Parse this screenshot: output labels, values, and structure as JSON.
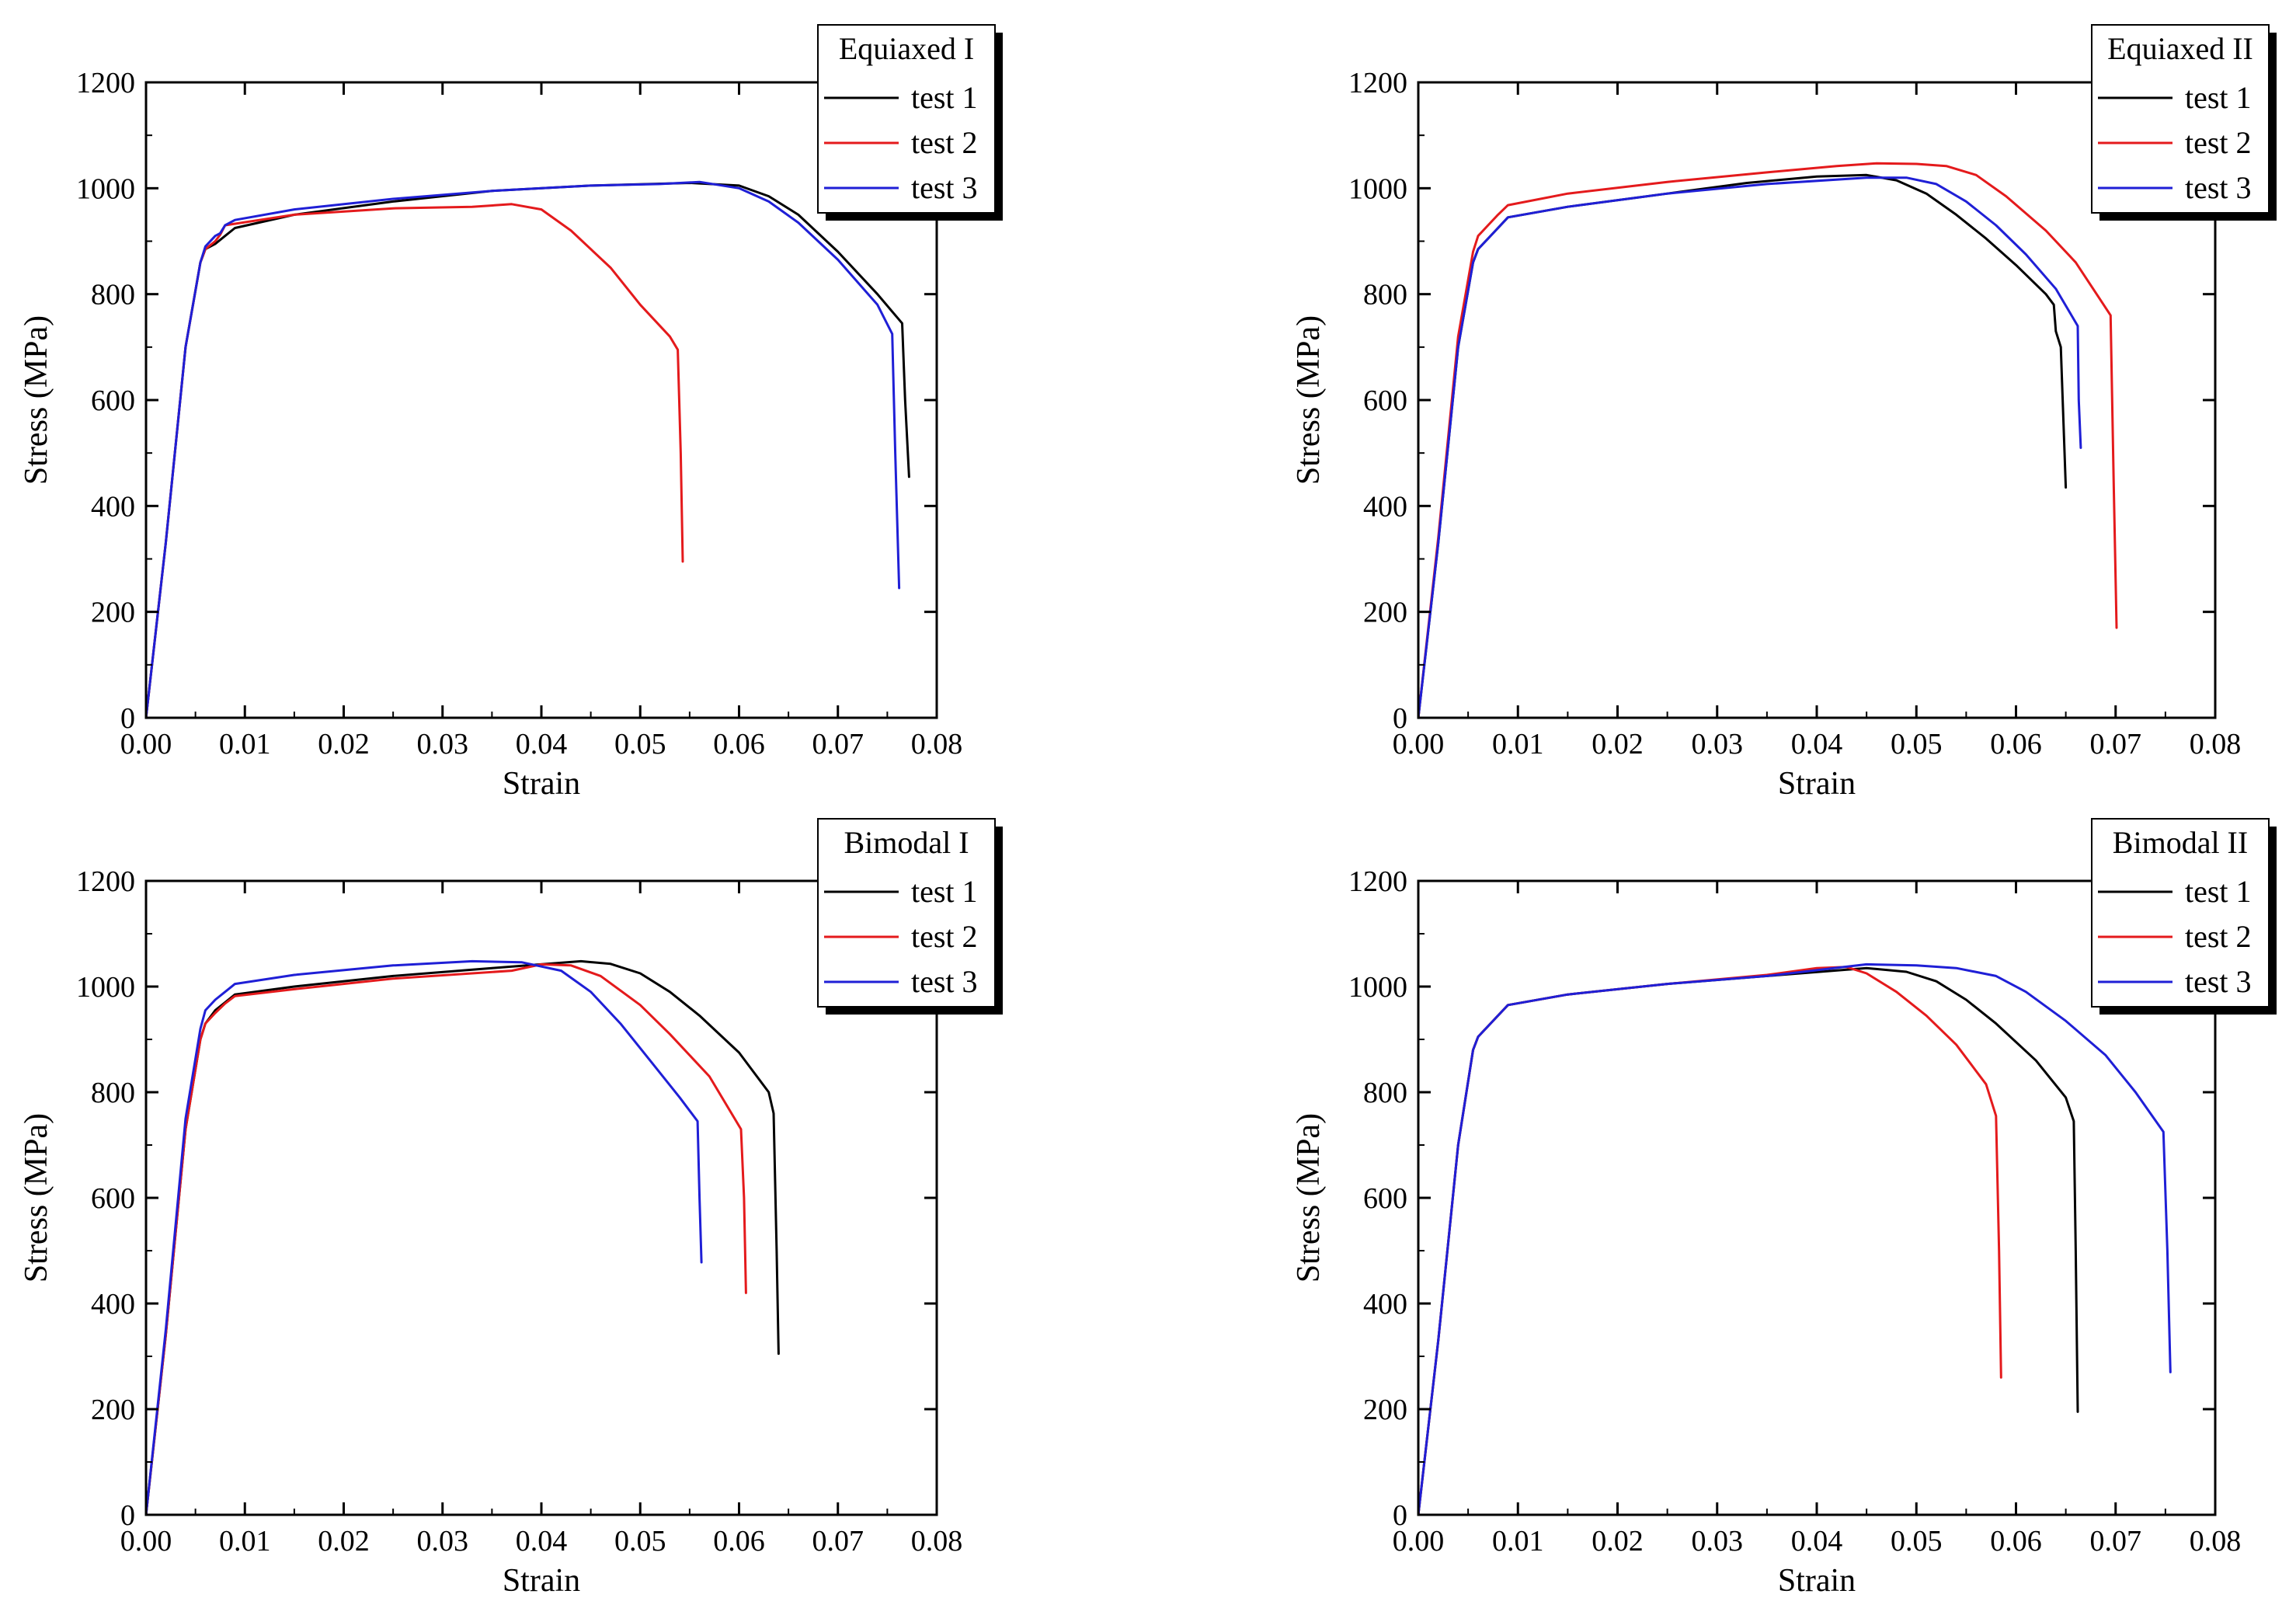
{
  "chart_data": [
    {
      "type": "line",
      "title": "Equiaxed I",
      "xlabel": "Strain",
      "ylabel": "Stress (MPa)",
      "xlim": [
        0,
        0.08
      ],
      "ylim": [
        0,
        1200
      ],
      "xticks": [
        "0.00",
        "0.01",
        "0.02",
        "0.03",
        "0.04",
        "0.05",
        "0.06",
        "0.07",
        "0.08"
      ],
      "yticks": [
        "0",
        "200",
        "400",
        "600",
        "800",
        "1000",
        "1200"
      ],
      "legend_position": "top-right",
      "series": [
        {
          "name": "test 1",
          "color": "#000000",
          "x": [
            0,
            0.002,
            0.004,
            0.0055,
            0.006,
            0.007,
            0.008,
            0.009,
            0.015,
            0.025,
            0.035,
            0.045,
            0.055,
            0.06,
            0.063,
            0.066,
            0.07,
            0.074,
            0.0765,
            0.0768,
            0.0772
          ],
          "y": [
            0,
            330,
            700,
            860,
            885,
            895,
            910,
            925,
            950,
            975,
            995,
            1005,
            1010,
            1005,
            985,
            950,
            880,
            800,
            745,
            600,
            455
          ]
        },
        {
          "name": "test 2",
          "color": "#e41a1c",
          "x": [
            0,
            0.002,
            0.004,
            0.0055,
            0.006,
            0.007,
            0.0075,
            0.008,
            0.015,
            0.025,
            0.033,
            0.037,
            0.04,
            0.043,
            0.047,
            0.05,
            0.053,
            0.0538,
            0.0541,
            0.0543
          ],
          "y": [
            0,
            330,
            700,
            860,
            885,
            900,
            912,
            930,
            950,
            962,
            965,
            970,
            960,
            920,
            850,
            780,
            720,
            695,
            500,
            295
          ]
        },
        {
          "name": "test 3",
          "color": "#1f1fd6",
          "x": [
            0,
            0.002,
            0.004,
            0.0055,
            0.006,
            0.007,
            0.0075,
            0.008,
            0.009,
            0.015,
            0.025,
            0.035,
            0.045,
            0.052,
            0.056,
            0.06,
            0.063,
            0.066,
            0.07,
            0.074,
            0.0755,
            0.0758,
            0.0762
          ],
          "y": [
            0,
            330,
            700,
            860,
            890,
            910,
            915,
            930,
            940,
            960,
            980,
            995,
            1005,
            1008,
            1012,
            1000,
            975,
            935,
            865,
            780,
            725,
            500,
            245
          ]
        }
      ]
    },
    {
      "type": "line",
      "title": "Equiaxed II",
      "xlabel": "Strain",
      "ylabel": "Stress (MPa)",
      "xlim": [
        0,
        0.08
      ],
      "ylim": [
        0,
        1200
      ],
      "xticks": [
        "0.00",
        "0.01",
        "0.02",
        "0.03",
        "0.04",
        "0.05",
        "0.06",
        "0.07",
        "0.08"
      ],
      "yticks": [
        "0",
        "200",
        "400",
        "600",
        "800",
        "1000",
        "1200"
      ],
      "legend_position": "top-right",
      "series": [
        {
          "name": "test 1",
          "color": "#000000",
          "x": [
            0,
            0.002,
            0.004,
            0.0055,
            0.006,
            0.007,
            0.008,
            0.009,
            0.015,
            0.025,
            0.033,
            0.04,
            0.045,
            0.048,
            0.051,
            0.054,
            0.057,
            0.06,
            0.063,
            0.0638,
            0.064,
            0.0645,
            0.065
          ],
          "y": [
            0,
            330,
            700,
            860,
            885,
            905,
            925,
            945,
            965,
            990,
            1010,
            1022,
            1025,
            1015,
            990,
            950,
            905,
            855,
            800,
            780,
            730,
            700,
            435
          ]
        },
        {
          "name": "test 2",
          "color": "#e41a1c",
          "x": [
            0,
            0.002,
            0.004,
            0.0055,
            0.006,
            0.007,
            0.008,
            0.009,
            0.015,
            0.025,
            0.035,
            0.042,
            0.046,
            0.05,
            0.053,
            0.056,
            0.059,
            0.063,
            0.066,
            0.0695,
            0.0698,
            0.0701
          ],
          "y": [
            0,
            340,
            720,
            880,
            910,
            930,
            950,
            968,
            990,
            1012,
            1030,
            1042,
            1047,
            1046,
            1042,
            1025,
            985,
            920,
            860,
            760,
            450,
            170
          ]
        },
        {
          "name": "test 3",
          "color": "#1f1fd6",
          "x": [
            0,
            0.002,
            0.004,
            0.0055,
            0.006,
            0.007,
            0.008,
            0.009,
            0.015,
            0.025,
            0.035,
            0.045,
            0.049,
            0.052,
            0.055,
            0.058,
            0.061,
            0.064,
            0.0662,
            0.0663,
            0.0665
          ],
          "y": [
            0,
            330,
            700,
            860,
            885,
            905,
            925,
            945,
            965,
            990,
            1008,
            1020,
            1020,
            1008,
            975,
            930,
            875,
            810,
            740,
            600,
            510
          ]
        }
      ]
    },
    {
      "type": "line",
      "title": "Bimodal I",
      "xlabel": "Strain",
      "ylabel": "Stress (MPa)",
      "xlim": [
        0,
        0.08
      ],
      "ylim": [
        0,
        1200
      ],
      "xticks": [
        "0.00",
        "0.01",
        "0.02",
        "0.03",
        "0.04",
        "0.05",
        "0.06",
        "0.07",
        "0.08"
      ],
      "yticks": [
        "0",
        "200",
        "400",
        "600",
        "800",
        "1000",
        "1200"
      ],
      "legend_position": "top-right",
      "series": [
        {
          "name": "test 1",
          "color": "#000000",
          "x": [
            0,
            0.002,
            0.004,
            0.0055,
            0.006,
            0.007,
            0.008,
            0.009,
            0.015,
            0.025,
            0.035,
            0.044,
            0.047,
            0.05,
            0.053,
            0.056,
            0.06,
            0.063,
            0.0635,
            0.0638,
            0.064
          ],
          "y": [
            0,
            340,
            730,
            900,
            930,
            955,
            970,
            985,
            1000,
            1020,
            1035,
            1048,
            1043,
            1025,
            990,
            945,
            875,
            800,
            760,
            500,
            305
          ]
        },
        {
          "name": "test 2",
          "color": "#e41a1c",
          "x": [
            0,
            0.002,
            0.004,
            0.0055,
            0.006,
            0.007,
            0.008,
            0.009,
            0.015,
            0.025,
            0.037,
            0.04,
            0.043,
            0.046,
            0.05,
            0.053,
            0.057,
            0.0602,
            0.0605,
            0.0607
          ],
          "y": [
            0,
            340,
            730,
            900,
            930,
            950,
            968,
            982,
            995,
            1015,
            1030,
            1042,
            1040,
            1020,
            965,
            910,
            830,
            730,
            600,
            420
          ]
        },
        {
          "name": "test 3",
          "color": "#1f1fd6",
          "x": [
            0,
            0.002,
            0.004,
            0.0055,
            0.006,
            0.007,
            0.008,
            0.009,
            0.015,
            0.025,
            0.033,
            0.038,
            0.042,
            0.045,
            0.048,
            0.051,
            0.054,
            0.0558,
            0.056,
            0.0562
          ],
          "y": [
            0,
            350,
            750,
            920,
            955,
            975,
            990,
            1005,
            1022,
            1040,
            1048,
            1046,
            1030,
            990,
            930,
            860,
            790,
            745,
            600,
            478
          ]
        }
      ]
    },
    {
      "type": "line",
      "title": "Bimodal II",
      "xlabel": "Strain",
      "ylabel": "Stress (MPa)",
      "xlim": [
        0,
        0.08
      ],
      "ylim": [
        0,
        1200
      ],
      "xticks": [
        "0.00",
        "0.01",
        "0.02",
        "0.03",
        "0.04",
        "0.05",
        "0.06",
        "0.07",
        "0.08"
      ],
      "yticks": [
        "0",
        "200",
        "400",
        "600",
        "800",
        "1000",
        "1200"
      ],
      "legend_position": "top-right",
      "series": [
        {
          "name": "test 1",
          "color": "#000000",
          "x": [
            0,
            0.002,
            0.004,
            0.0055,
            0.006,
            0.007,
            0.008,
            0.009,
            0.015,
            0.025,
            0.035,
            0.045,
            0.049,
            0.052,
            0.055,
            0.058,
            0.062,
            0.065,
            0.0658,
            0.066,
            0.0662
          ],
          "y": [
            0,
            330,
            700,
            880,
            905,
            925,
            945,
            965,
            985,
            1005,
            1020,
            1035,
            1028,
            1010,
            975,
            930,
            860,
            790,
            745,
            500,
            195
          ]
        },
        {
          "name": "test 2",
          "color": "#e41a1c",
          "x": [
            0,
            0.002,
            0.004,
            0.0055,
            0.006,
            0.007,
            0.008,
            0.009,
            0.015,
            0.025,
            0.035,
            0.04,
            0.043,
            0.045,
            0.048,
            0.051,
            0.054,
            0.057,
            0.058,
            0.0583,
            0.0585
          ],
          "y": [
            0,
            330,
            700,
            880,
            905,
            925,
            945,
            965,
            985,
            1005,
            1022,
            1035,
            1037,
            1025,
            990,
            945,
            890,
            815,
            755,
            500,
            260
          ]
        },
        {
          "name": "test 3",
          "color": "#1f1fd6",
          "x": [
            0,
            0.002,
            0.004,
            0.0055,
            0.006,
            0.007,
            0.008,
            0.009,
            0.015,
            0.025,
            0.035,
            0.045,
            0.05,
            0.054,
            0.058,
            0.061,
            0.065,
            0.069,
            0.072,
            0.0748,
            0.0752,
            0.0755
          ],
          "y": [
            0,
            330,
            700,
            880,
            905,
            925,
            945,
            965,
            985,
            1005,
            1020,
            1042,
            1040,
            1035,
            1020,
            990,
            935,
            870,
            800,
            725,
            500,
            270
          ]
        }
      ]
    }
  ]
}
